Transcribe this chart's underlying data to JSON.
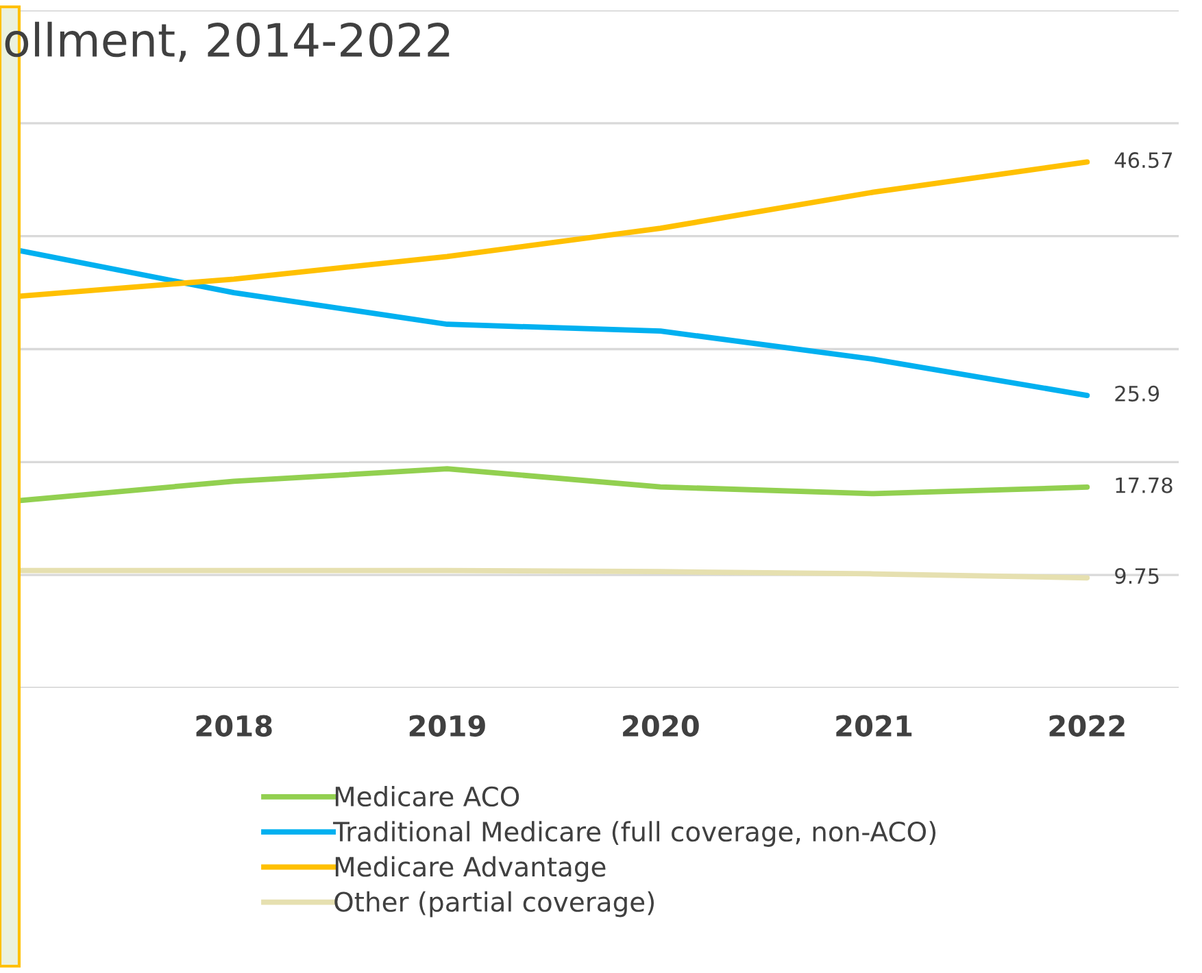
{
  "chart_data": {
    "type": "line",
    "title": "ollment, 2014-2022",
    "categories": [
      null,
      "2018",
      "2019",
      "2020",
      "2021",
      "2022"
    ],
    "series": [
      {
        "name": "Medicare ACO",
        "color": "#92d050",
        "values": [
          16.6,
          18.3,
          19.4,
          17.8,
          17.2,
          17.78
        ],
        "value_labels": [
          null,
          null,
          null,
          null,
          null,
          "17.78"
        ]
      },
      {
        "name": "Traditional Medicare (full coverage, non-ACO)",
        "color": "#00b0f0",
        "values": [
          38.7,
          35.0,
          32.2,
          31.6,
          29.1,
          25.9
        ],
        "value_labels": [
          null,
          null,
          null,
          null,
          null,
          "25.9"
        ]
      },
      {
        "name": "Medicare Advantage",
        "color": "#ffc000",
        "values": [
          34.7,
          36.2,
          38.2,
          40.7,
          43.9,
          46.57
        ],
        "value_labels": [
          null,
          null,
          null,
          null,
          null,
          "46.57"
        ]
      },
      {
        "name": "Other (partial coverage)",
        "color": "#e6e0b0",
        "values": [
          10.4,
          10.4,
          10.4,
          10.3,
          10.1,
          9.75
        ],
        "value_labels": [
          null,
          null,
          null,
          null,
          null,
          "9.75"
        ]
      }
    ],
    "ylim": [
      0,
      60
    ],
    "yticks": [
      {
        "value": 0,
        "label": null
      },
      {
        "value": 10,
        "label": null
      },
      {
        "value": 20,
        "label": null
      },
      {
        "value": 30,
        "label": null
      },
      {
        "value": 40,
        "label": null
      },
      {
        "value": 50,
        "label": null
      },
      {
        "value": 60,
        "label": null
      }
    ],
    "tick_labels": "x",
    "grid": "y",
    "legend": "bottom",
    "marker": "none",
    "line_style": "solid"
  }
}
